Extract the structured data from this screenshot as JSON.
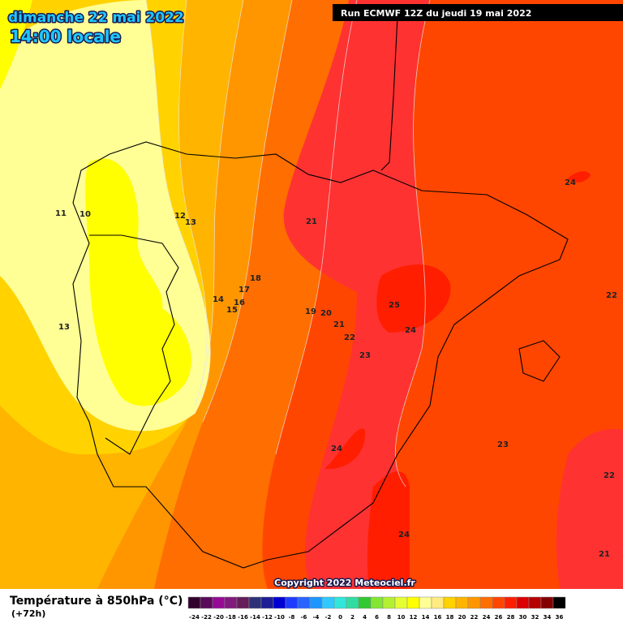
{
  "header": {
    "date": "dimanche 22 mai 2022",
    "time": "14:00 locale",
    "run": "Run ECMWF 12Z du jeudi 19 mai 2022"
  },
  "map": {
    "copyright": "Copyright 2022 Meteociel.fr",
    "contour_labels": [
      11,
      10,
      12,
      13,
      13,
      18,
      17,
      14,
      16,
      15,
      21,
      19,
      20,
      21,
      22,
      23,
      25,
      24,
      24,
      24,
      23,
      22,
      22,
      24,
      21
    ]
  },
  "legend": {
    "title": "Température à 850hPa (°C)",
    "lead": "(+72h)",
    "ticks": [
      -24,
      -22,
      -20,
      -18,
      -16,
      -14,
      -12,
      -10,
      -8,
      -6,
      -4,
      -2,
      0,
      2,
      4,
      6,
      8,
      10,
      12,
      14,
      16,
      18,
      20,
      22,
      24,
      26,
      28,
      30,
      32,
      34,
      36
    ],
    "colors": [
      "#32002d",
      "#5a0a5a",
      "#960a96",
      "#82197d",
      "#641e5a",
      "#2d3278",
      "#1e1e96",
      "#0000d2",
      "#1e3cff",
      "#2864ff",
      "#1e96ff",
      "#32c8ff",
      "#32e6dc",
      "#32dca0",
      "#32c832",
      "#82e632",
      "#b4f032",
      "#e6ff32",
      "#ffff00",
      "#ffff96",
      "#ffeb82",
      "#ffd200",
      "#ffb400",
      "#ff9600",
      "#ff6e00",
      "#ff4600",
      "#ff1e00",
      "#dc0000",
      "#b40000",
      "#820000",
      "#000000"
    ]
  }
}
